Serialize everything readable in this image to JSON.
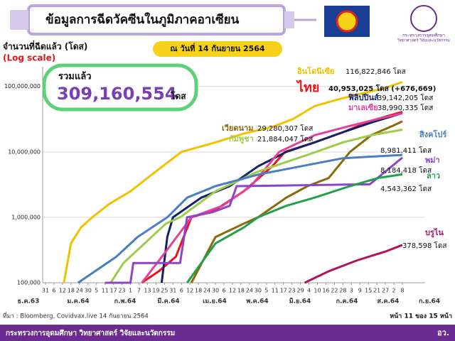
{
  "header": {
    "title": "ข้อมูลการฉีดวัคซีนในภูมิภาคอาเซียน",
    "date": "ณ วันที่ 14 กันยายน 2564",
    "ministry_line1": "กระทรวงการอุดมศึกษา",
    "ministry_line2": "วิทยาศาสตร์ วิจัยและนวัตกรรม"
  },
  "chart_data": {
    "type": "line",
    "y_label": "จำนวนที่ฉีดแล้ว (โดส)",
    "scale_note": "(Log scale)",
    "log_scale": true,
    "grid": true,
    "total": {
      "label": "รวมแล้ว",
      "value": 309160554,
      "value_label": "309,160,554",
      "unit": "โดส"
    },
    "ylim": [
      100000,
      200000000
    ],
    "yticks": [
      {
        "value": 100000,
        "label": "100,000"
      },
      {
        "value": 1000000,
        "label": "1,000,000"
      },
      {
        "value": 10000000,
        "label": "10,000,000"
      },
      {
        "value": 100000000,
        "label": "100,000,000"
      }
    ],
    "xlim": [
      -2,
      258
    ],
    "xticks": [
      {
        "value": 0,
        "label": "31"
      },
      {
        "value": 6,
        "label": "6"
      },
      {
        "value": 12,
        "label": "12"
      },
      {
        "value": 18,
        "label": "18"
      },
      {
        "value": 24,
        "label": "24"
      },
      {
        "value": 30,
        "label": "30"
      },
      {
        "value": 36,
        "label": "5"
      },
      {
        "value": 42,
        "label": "11"
      },
      {
        "value": 48,
        "label": "17"
      },
      {
        "value": 54,
        "label": "23"
      },
      {
        "value": 60,
        "label": "1"
      },
      {
        "value": 66,
        "label": "7"
      },
      {
        "value": 72,
        "label": "13"
      },
      {
        "value": 78,
        "label": "19"
      },
      {
        "value": 84,
        "label": "25"
      },
      {
        "value": 90,
        "label": "31"
      },
      {
        "value": 96,
        "label": "6"
      },
      {
        "value": 102,
        "label": "12"
      },
      {
        "value": 108,
        "label": "18"
      },
      {
        "value": 114,
        "label": "24"
      },
      {
        "value": 120,
        "label": "30"
      },
      {
        "value": 126,
        "label": "6"
      },
      {
        "value": 132,
        "label": "12"
      },
      {
        "value": 138,
        "label": "18"
      },
      {
        "value": 144,
        "label": "24"
      },
      {
        "value": 150,
        "label": "30"
      },
      {
        "value": 156,
        "label": "5"
      },
      {
        "value": 162,
        "label": "11"
      },
      {
        "value": 168,
        "label": "17"
      },
      {
        "value": 174,
        "label": "23"
      },
      {
        "value": 180,
        "label": "29"
      },
      {
        "value": 186,
        "label": "4"
      },
      {
        "value": 192,
        "label": "10"
      },
      {
        "value": 198,
        "label": "16"
      },
      {
        "value": 204,
        "label": "22"
      },
      {
        "value": 210,
        "label": "28"
      },
      {
        "value": 216,
        "label": "3"
      },
      {
        "value": 222,
        "label": "9"
      },
      {
        "value": 228,
        "label": "15"
      },
      {
        "value": 234,
        "label": "21"
      },
      {
        "value": 240,
        "label": "27"
      },
      {
        "value": 246,
        "label": "2"
      },
      {
        "value": 252,
        "label": "8"
      }
    ],
    "x_group_labels": [
      "ธ.ค.63",
      "ม.ค.64",
      "ก.พ.64",
      "มี.ค.64",
      "เม.ย.64",
      "พ.ค.64",
      "มิ.ย.64",
      "ก.ค.64",
      "ส.ค.64",
      "ก.ย.64"
    ],
    "series": [
      {
        "name": "อินโดนีเซีย",
        "color": "#f2c200",
        "last_label": "116,822,846 โดส",
        "x": [
          13,
          18,
          25,
          33,
          45,
          60,
          75,
          96,
          120,
          140,
          160,
          175,
          190,
          205,
          220,
          240,
          252
        ],
        "values": [
          100000,
          400000,
          700000,
          1000000,
          1600000,
          2500000,
          4500000,
          10000000,
          14000000,
          19000000,
          24000000,
          32000000,
          50000000,
          62000000,
          75000000,
          95000000,
          116822846
        ]
      },
      {
        "name": "ไทย",
        "color": "#e8141c",
        "last_label": "40,953,025 โดส (+676,669)",
        "x": [
          68,
          80,
          92,
          103,
          120,
          140,
          160,
          169,
          190,
          210,
          230,
          252
        ],
        "values": [
          100000,
          150000,
          250000,
          1000000,
          1300000,
          2500000,
          6000000,
          10000000,
          14000000,
          20000000,
          30000000,
          40953025
        ]
      },
      {
        "name": "ฟิลิปปินส์",
        "color": "#14226a",
        "last_label": "39,142,205 โดส",
        "x": [
          82,
          86,
          90,
          110,
          130,
          150,
          170,
          190,
          210,
          230,
          252
        ],
        "values": [
          100000,
          500000,
          1000000,
          2000000,
          3000000,
          6000000,
          10000000,
          14000000,
          20000000,
          28000000,
          39142205
        ]
      },
      {
        "name": "มาเลเซีย",
        "color": "#e6409b",
        "last_label": "38,990,335 โดส",
        "x": [
          68,
          85,
          103,
          125,
          145,
          165,
          190,
          215,
          235,
          252
        ],
        "values": [
          100000,
          300000,
          1000000,
          1500000,
          3000000,
          10000000,
          18000000,
          25000000,
          32000000,
          38990335
        ]
      },
      {
        "name": "เวียดนาม",
        "color": "#8a6a0a",
        "last_label": "29,280,307 โดส",
        "x": [
          103,
          120,
          140,
          150,
          170,
          185,
          200,
          215,
          230,
          245,
          252
        ],
        "values": [
          100000,
          500000,
          800000,
          1000000,
          2000000,
          3000000,
          4000000,
          10000000,
          18000000,
          25000000,
          29280307
        ]
      },
      {
        "name": "กัมพูชา",
        "color": "#9ccc4a",
        "last_label": "21,884,047 โดส",
        "x": [
          46,
          55,
          70,
          85,
          95,
          120,
          150,
          185,
          210,
          230,
          252
        ],
        "values": [
          100000,
          200000,
          400000,
          800000,
          1000000,
          2500000,
          5000000,
          9000000,
          14000000,
          18000000,
          21884047
        ]
      },
      {
        "name": "สิงคโปร์",
        "color": "#4a7ec4",
        "last_label": "8,981,411 โดส",
        "x": [
          23,
          35,
          50,
          65,
          86,
          100,
          120,
          150,
          180,
          210,
          252
        ],
        "values": [
          100000,
          150000,
          250000,
          500000,
          1000000,
          2000000,
          3000000,
          4500000,
          6000000,
          8000000,
          8981411
        ]
      },
      {
        "name": "พม่า",
        "color": "#8e44c8",
        "last_label": "8,184,418 โดส",
        "x": [
          42,
          60,
          62,
          95,
          100,
          118,
          130,
          135,
          229,
          240,
          252
        ],
        "values": [
          100000,
          100000,
          200000,
          200000,
          1000000,
          1200000,
          1500000,
          3000000,
          3200000,
          5000000,
          8184418
        ]
      },
      {
        "name": "ลาว",
        "color": "#22a04a",
        "last_label": "4,543,362 โดส",
        "x": [
          100,
          120,
          140,
          150,
          170,
          190,
          215,
          235,
          252
        ],
        "values": [
          100000,
          400000,
          700000,
          1000000,
          1500000,
          2000000,
          3000000,
          4000000,
          4543362
        ]
      },
      {
        "name": "บรูไน",
        "color": "#b0145e",
        "last_label": "378,598 โดส",
        "x": [
          183,
          200,
          220,
          240,
          252
        ],
        "values": [
          100000,
          150000,
          220000,
          300000,
          378598
        ]
      }
    ]
  },
  "footer": {
    "source": "ที่มา : Bloomberg, Covidvax.live 14 กันยายน 2564",
    "page": "หน้า 11 ของ 15 หน้า",
    "org": "กระทรวงการอุดมศึกษา วิทยาศาสตร์ วิจัยและนวัตกรรม",
    "org_short": "อว."
  }
}
